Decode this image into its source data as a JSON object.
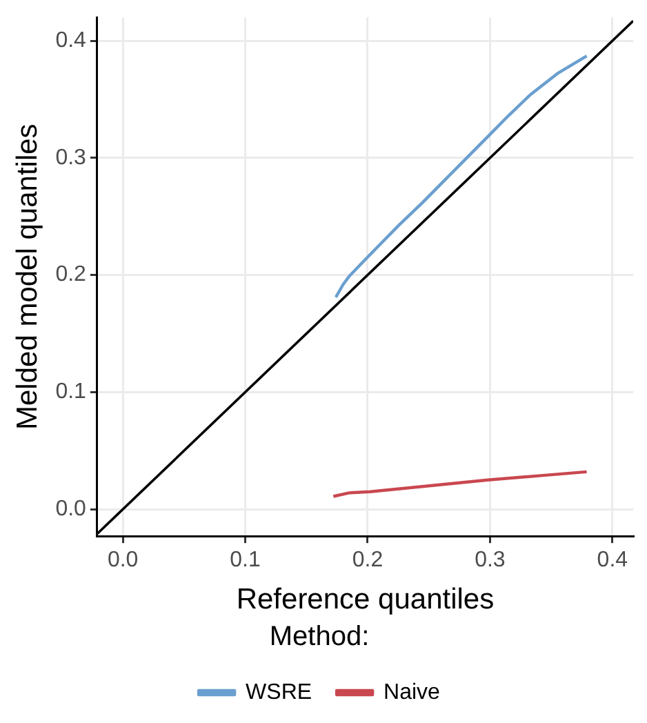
{
  "chart_data": {
    "type": "line",
    "xlabel": "Reference quantiles",
    "ylabel": "Melded model quantiles",
    "legend_title": "Method:",
    "legend": "bottom",
    "grid": true,
    "marker": "none",
    "line_style": "solid",
    "xlim": [
      -0.021,
      0.417
    ],
    "ylim": [
      -0.023,
      0.42
    ],
    "xticks": [
      {
        "value": 0,
        "label": "0.0"
      },
      0.1,
      0.2,
      0.3,
      0.4
    ],
    "yticks": [
      {
        "value": 0,
        "label": "0.0"
      },
      0.1,
      0.2,
      0.3,
      0.4
    ],
    "series": [
      {
        "name": "WSRE",
        "color": "#6a9fcf",
        "x": [
          0.174,
          0.18,
          0.185,
          0.196,
          0.21,
          0.226,
          0.245,
          0.262,
          0.28,
          0.298,
          0.315,
          0.333,
          0.355,
          0.379
        ],
        "values": [
          0.181,
          0.192,
          0.199,
          0.211,
          0.226,
          0.243,
          0.262,
          0.28,
          0.299,
          0.318,
          0.336,
          0.354,
          0.372,
          0.387
        ]
      },
      {
        "name": "Naive",
        "color": "#c9474f",
        "x": [
          0.172,
          0.185,
          0.202,
          0.25,
          0.298,
          0.345,
          0.379
        ],
        "values": [
          0.011,
          0.014,
          0.015,
          0.02,
          0.025,
          0.029,
          0.032
        ]
      },
      {
        "type": "line",
        "color": "#000000",
        "x": [
          -0.021,
          0.417
        ],
        "values": [
          -0.021,
          0.417
        ]
      }
    ]
  }
}
